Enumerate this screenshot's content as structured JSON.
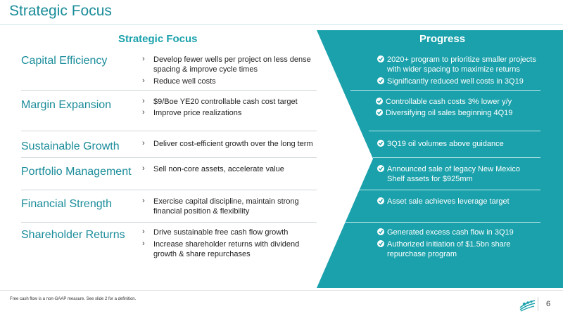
{
  "slide": {
    "title": "Strategic Focus",
    "header_left": "Strategic Focus",
    "header_right": "Progress",
    "rows": [
      {
        "label": "Capital Efficiency",
        "bullets": [
          "Develop fewer wells per project on less dense",
          "spacing & improve cycle times",
          "Reduce well costs"
        ],
        "progress": [
          "2020+ program to prioritize smaller projects",
          "with wider spacing to maximize returns",
          "Significantly reduced well costs in 3Q19"
        ]
      },
      {
        "label": "Margin Expansion",
        "bullets": [
          "$9/Boe YE20 controllable cash cost target",
          "Improve price realizations"
        ],
        "progress": [
          "Controllable cash costs 3% lower y/y",
          "Diversifying oil sales beginning 4Q19"
        ]
      },
      {
        "label": "Sustainable Growth",
        "bullets": [
          "Deliver cost-efficient growth over the long term"
        ],
        "progress": [
          "3Q19 oil volumes above guidance"
        ]
      },
      {
        "label": "Portfolio Management",
        "bullets": [
          "Sell non-core assets, accelerate value"
        ],
        "progress": [
          "Announced sale of legacy New Mexico",
          "Shelf assets for $925mm"
        ]
      },
      {
        "label": "Financial Strength",
        "bullets": [
          "Exercise capital discipline, maintain strong",
          "financial position & flexibility"
        ],
        "progress": [
          "Asset sale achieves leverage target"
        ]
      },
      {
        "label": "Shareholder Returns",
        "bullets": [
          "Drive sustainable free cash flow growth",
          "Increase shareholder returns with dividend",
          "growth & share repurchases"
        ],
        "progress": [
          "Generated excess cash flow in 3Q19",
          "Authorized initiation of $1.5bn share",
          "repurchase program"
        ]
      }
    ],
    "footnote": "Free cash flow is a non-GAAP measure. See slide 2 for a definition.",
    "page_number": "6"
  },
  "colors": {
    "teal": "#1aa1ab",
    "title_teal": "#1a8c9a",
    "white": "#ffffff"
  },
  "icons": [
    "check-circle-icon",
    "caret-right-icon",
    "company-logo-icon"
  ]
}
